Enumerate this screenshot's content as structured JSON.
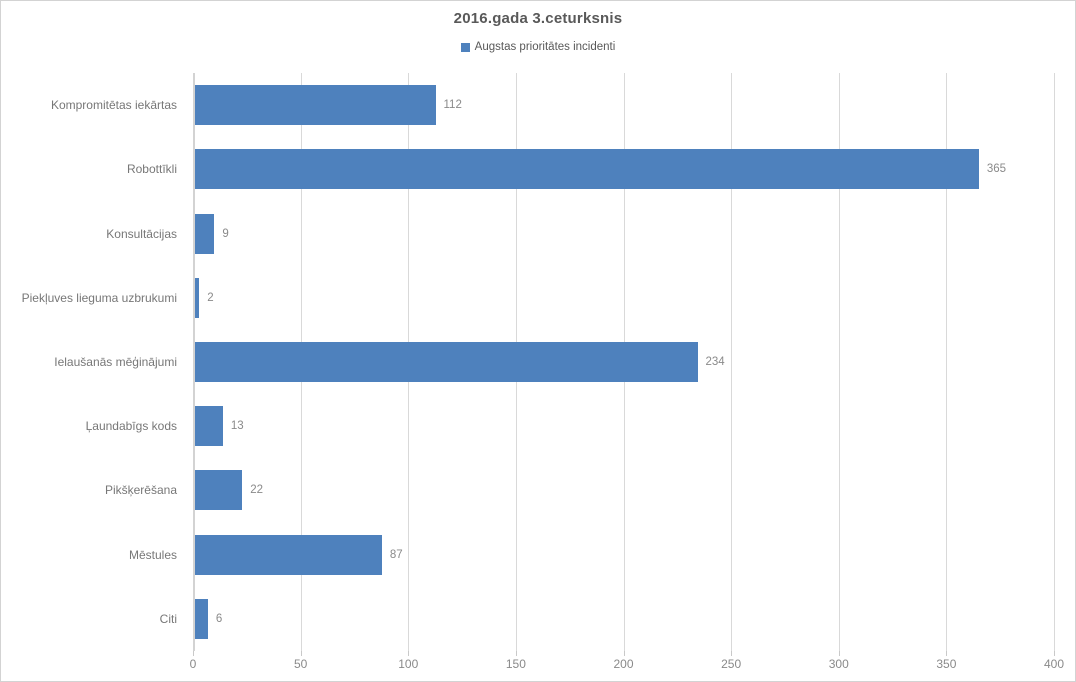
{
  "title": "2016.gada 3.ceturksnis",
  "legend": {
    "label": "Augstas prioritātes incidenti"
  },
  "colors": {
    "bar": "#4E81BD",
    "grid": "#D9D9D9",
    "axis_line": "#D3D3D3",
    "tick": "#C9C9C9",
    "title_text": "#595959",
    "category_text": "#777777",
    "value_text": "#8A8A8A",
    "frame_border": "#D3D3D3"
  },
  "chart_data": {
    "type": "bar",
    "orientation": "horizontal",
    "title": "2016.gada 3.ceturksnis",
    "categories": [
      "Kompromitētas iekārtas",
      "Robottīkli",
      "Konsultācijas",
      "Piekļuves lieguma uzbrukumi",
      "Ielaušanās mēģinājumi",
      "Ļaundabīgs kods",
      "Pikšķerēšana",
      "Mēstules",
      "Citi"
    ],
    "series": [
      {
        "name": "Augstas prioritātes incidenti",
        "values": [
          112,
          365,
          9,
          2,
          234,
          13,
          22,
          87,
          6
        ]
      }
    ],
    "xlim": [
      0,
      400
    ],
    "xticks": [
      0,
      50,
      100,
      150,
      200,
      250,
      300,
      350,
      400
    ],
    "grid": true,
    "data_labels": true,
    "legend_position": "top-center",
    "bar_color": "#4E81BD"
  }
}
